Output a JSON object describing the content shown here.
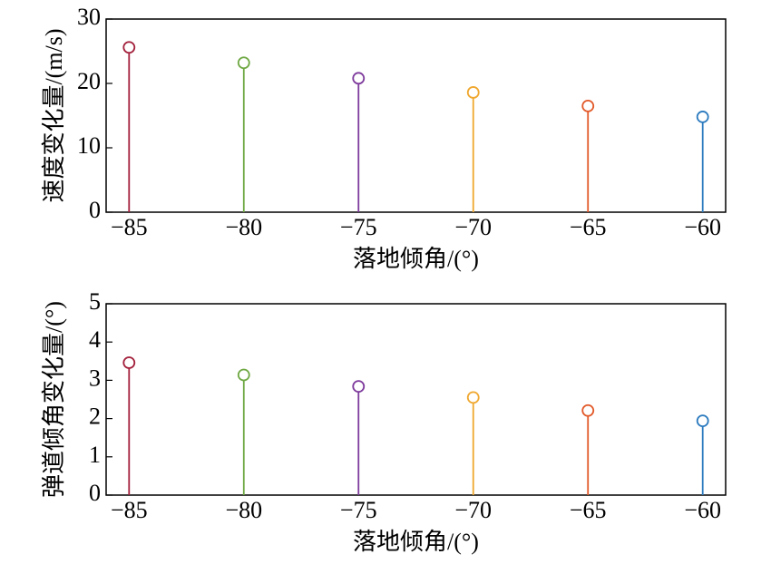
{
  "chart_data": [
    {
      "type": "stem",
      "x": [
        -85,
        -80,
        -75,
        -70,
        -65,
        -60
      ],
      "values": [
        25.6,
        23.2,
        20.8,
        18.6,
        16.5,
        14.8
      ],
      "colors": [
        "#a3203c",
        "#6fa843",
        "#7e3b9c",
        "#f0a830",
        "#e25a2a",
        "#2c7bbf"
      ],
      "xlim": [
        -86,
        -59
      ],
      "ylim": [
        0,
        30
      ],
      "xticks": [
        {
          "value": -85,
          "label": "−85"
        },
        {
          "value": -80,
          "label": "−80"
        },
        {
          "value": -75,
          "label": "−75"
        },
        {
          "value": -70,
          "label": "−70"
        },
        {
          "value": -65,
          "label": "−65"
        },
        {
          "value": -60,
          "label": "−60"
        }
      ],
      "yticks": [
        0,
        10,
        20,
        30
      ],
      "xlabel": "落地倾角/(°)",
      "ylabel": "速度变化量/(m/s)"
    },
    {
      "type": "stem",
      "x": [
        -85,
        -80,
        -75,
        -70,
        -65,
        -60
      ],
      "values": [
        3.46,
        3.14,
        2.84,
        2.55,
        2.21,
        1.94
      ],
      "colors": [
        "#a3203c",
        "#6fa843",
        "#7e3b9c",
        "#f0a830",
        "#e25a2a",
        "#2c7bbf"
      ],
      "xlim": [
        -86,
        -59
      ],
      "ylim": [
        0,
        5
      ],
      "xticks": [
        {
          "value": -85,
          "label": "−85"
        },
        {
          "value": -80,
          "label": "−80"
        },
        {
          "value": -75,
          "label": "−75"
        },
        {
          "value": -70,
          "label": "−70"
        },
        {
          "value": -65,
          "label": "−65"
        },
        {
          "value": -60,
          "label": "−60"
        }
      ],
      "yticks": [
        0,
        1,
        2,
        3,
        4,
        5
      ],
      "xlabel": "落地倾角/(°)",
      "ylabel": "弹道倾角变化量/(°)"
    }
  ]
}
